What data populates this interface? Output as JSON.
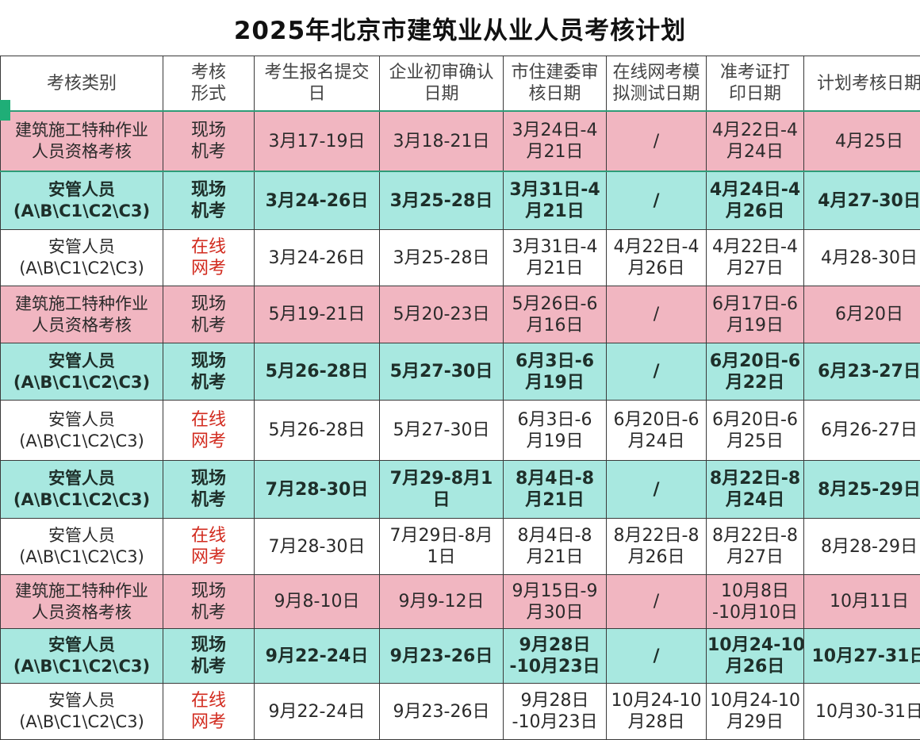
{
  "title": "2025年北京市建筑业从业人员考核计划",
  "headers": [
    [
      "考核类别"
    ],
    [
      "考核",
      "形式"
    ],
    [
      "考生报名提交",
      "日"
    ],
    [
      "企业初审确认",
      "日期"
    ],
    [
      "市住建委审",
      "核日期"
    ],
    [
      "在线网考模",
      "拟测试日期"
    ],
    [
      "准考证打",
      "印日期"
    ],
    [
      "计划考核日期"
    ]
  ],
  "rows": [
    {
      "style": "pink first",
      "cat": [
        "建筑施工特种作业",
        "人员资格考核"
      ],
      "form": [
        "现场",
        "机考"
      ],
      "online": false,
      "submit": [
        "3月17-19日"
      ],
      "confirm": [
        "3月18-21日"
      ],
      "review": [
        "3月24日-4",
        "月21日"
      ],
      "mock": [
        "/"
      ],
      "ticket": [
        "4月22日-4",
        "月24日"
      ],
      "exam": [
        "4月25日"
      ]
    },
    {
      "style": "teal",
      "cat": [
        "安管人员",
        "(A\\B\\C1\\C2\\C3)"
      ],
      "form": [
        "现场",
        "机考"
      ],
      "online": false,
      "submit": [
        "3月24-26日"
      ],
      "confirm": [
        "3月25-28日"
      ],
      "review": [
        "3月31日-4",
        "月21日"
      ],
      "mock": [
        "/"
      ],
      "ticket": [
        "4月24日-4",
        "月26日"
      ],
      "exam": [
        "4月27-30日"
      ]
    },
    {
      "style": "white",
      "cat": [
        "安管人员",
        "(A\\B\\C1\\C2\\C3)"
      ],
      "form": [
        "在线",
        "网考"
      ],
      "online": true,
      "submit": [
        "3月24-26日"
      ],
      "confirm": [
        "3月25-28日"
      ],
      "review": [
        "3月31日-4",
        "月21日"
      ],
      "mock": [
        "4月22日-4",
        "月26日"
      ],
      "ticket": [
        "4月22日-4",
        "月27日"
      ],
      "exam": [
        "4月28-30日"
      ]
    },
    {
      "style": "pink",
      "cat": [
        "建筑施工特种作业",
        "人员资格考核"
      ],
      "form": [
        "现场",
        "机考"
      ],
      "online": false,
      "submit": [
        "5月19-21日"
      ],
      "confirm": [
        "5月20-23日"
      ],
      "review": [
        "5月26日-6",
        "月16日"
      ],
      "mock": [
        "/"
      ],
      "ticket": [
        "6月17日-6",
        "月19日"
      ],
      "exam": [
        "6月20日"
      ]
    },
    {
      "style": "teal",
      "cat": [
        "安管人员",
        "(A\\B\\C1\\C2\\C3)"
      ],
      "form": [
        "现场",
        "机考"
      ],
      "online": false,
      "submit": [
        "5月26-28日"
      ],
      "confirm": [
        "5月27-30日"
      ],
      "review": [
        "6月3日-6",
        "月19日"
      ],
      "mock": [
        "/"
      ],
      "ticket": [
        "6月20日-6",
        "月22日"
      ],
      "exam": [
        "6月23-27日"
      ]
    },
    {
      "style": "white",
      "cat": [
        "安管人员",
        "(A\\B\\C1\\C2\\C3)"
      ],
      "form": [
        "在线",
        "网考"
      ],
      "online": true,
      "submit": [
        "5月26-28日"
      ],
      "confirm": [
        "5月27-30日"
      ],
      "review": [
        "6月3日-6",
        "月19日"
      ],
      "mock": [
        "6月20日-6",
        "月24日"
      ],
      "ticket": [
        "6月20日-6",
        "月25日"
      ],
      "exam": [
        "6月26-27日"
      ]
    },
    {
      "style": "teal",
      "cat": [
        "安管人员",
        "(A\\B\\C1\\C2\\C3)"
      ],
      "form": [
        "现场",
        "机考"
      ],
      "online": false,
      "submit": [
        "7月28-30日"
      ],
      "confirm": [
        "7月29-8月1",
        "日"
      ],
      "review": [
        "8月4日-8",
        "月21日"
      ],
      "mock": [
        "/"
      ],
      "ticket": [
        "8月22日-8",
        "月24日"
      ],
      "exam": [
        "8月25-29日"
      ]
    },
    {
      "style": "white",
      "cat": [
        "安管人员",
        "(A\\B\\C1\\C2\\C3)"
      ],
      "form": [
        "在线",
        "网考"
      ],
      "online": true,
      "submit": [
        "7月28-30日"
      ],
      "confirm": [
        "7月29日-8月",
        "1日"
      ],
      "review": [
        "8月4日-8",
        "月21日"
      ],
      "mock": [
        "8月22日-8",
        "月26日"
      ],
      "ticket": [
        "8月22日-8",
        "月27日"
      ],
      "exam": [
        "8月28-29日"
      ]
    },
    {
      "style": "pink",
      "cat": [
        "建筑施工特种作业",
        "人员资格考核"
      ],
      "form": [
        "现场",
        "机考"
      ],
      "online": false,
      "submit": [
        "9月8-10日"
      ],
      "confirm": [
        "9月9-12日"
      ],
      "review": [
        "9月15日-9",
        "月30日"
      ],
      "mock": [
        "/"
      ],
      "ticket": [
        "10月8日",
        "-10月10日"
      ],
      "exam": [
        "10月11日"
      ]
    },
    {
      "style": "teal",
      "cat": [
        "安管人员",
        "(A\\B\\C1\\C2\\C3)"
      ],
      "form": [
        "现场",
        "机考"
      ],
      "online": false,
      "submit": [
        "9月22-24日"
      ],
      "confirm": [
        "9月23-26日"
      ],
      "review": [
        "9月28日",
        "-10月23日"
      ],
      "mock": [
        "/"
      ],
      "ticket": [
        "10月24-10",
        "月26日"
      ],
      "exam": [
        "10月27-31日"
      ]
    },
    {
      "style": "white",
      "cat": [
        "安管人员",
        "(A\\B\\C1\\C2\\C3)"
      ],
      "form": [
        "在线",
        "网考"
      ],
      "online": true,
      "submit": [
        "9月22-24日"
      ],
      "confirm": [
        "9月23-26日"
      ],
      "review": [
        "9月28日",
        "-10月23日"
      ],
      "mock": [
        "10月24-10",
        "月28日"
      ],
      "ticket": [
        "10月24-10",
        "月29日"
      ],
      "exam": [
        "10月30-31日"
      ]
    }
  ]
}
